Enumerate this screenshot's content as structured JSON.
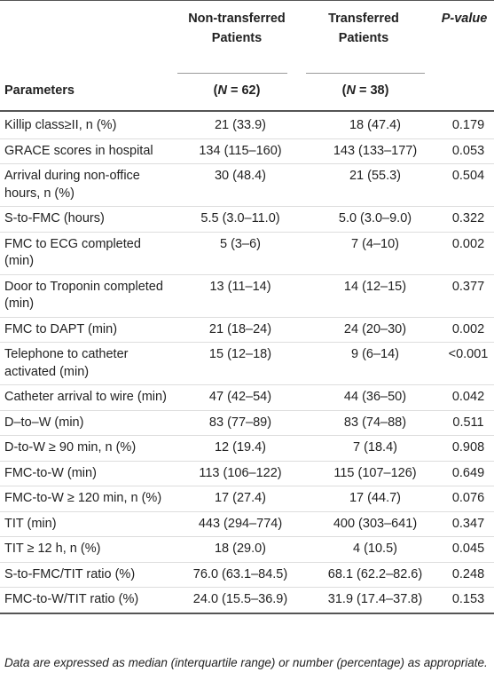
{
  "header": {
    "non_transferred": "Non-transferred Patients",
    "transferred": "Transferred Patients",
    "pvalue": "P-value",
    "parameters": "Parameters",
    "n_non_prefix": "(",
    "n_non_var": "N",
    "n_non_rest": " = 62)",
    "n_tr_prefix": "(",
    "n_tr_var": "N",
    "n_tr_rest": " = 38)"
  },
  "rows": [
    {
      "param": "Killip class≥II, n (%)",
      "non": "21 (33.9)",
      "tr": "18 (47.4)",
      "p": "0.179"
    },
    {
      "param": "GRACE scores in hospital",
      "non": "134 (115–160)",
      "tr": "143 (133–177)",
      "p": "0.053"
    },
    {
      "param": "Arrival during non-office hours, n (%)",
      "non": "30 (48.4)",
      "tr": "21 (55.3)",
      "p": "0.504"
    },
    {
      "param": "S-to-FMC (hours)",
      "non": "5.5 (3.0–11.0)",
      "tr": "5.0 (3.0–9.0)",
      "p": "0.322"
    },
    {
      "param": "FMC to ECG completed (min)",
      "non": "5 (3–6)",
      "tr": "7 (4–10)",
      "p": "0.002"
    },
    {
      "param": "Door to Troponin completed (min)",
      "non": "13 (11–14)",
      "tr": "14 (12–15)",
      "p": "0.377"
    },
    {
      "param": "FMC to DAPT (min)",
      "non": "21 (18–24)",
      "tr": "24 (20–30)",
      "p": "0.002"
    },
    {
      "param": "Telephone to catheter activated (min)",
      "non": "15 (12–18)",
      "tr": "9 (6–14)",
      "p": "<0.001"
    },
    {
      "param": "Catheter arrival to wire (min)",
      "non": "47 (42–54)",
      "tr": "44 (36–50)",
      "p": "0.042"
    },
    {
      "param": "D–to–W (min)",
      "non": "83 (77–89)",
      "tr": "83 (74–88)",
      "p": "0.511"
    },
    {
      "param": "D-to-W ≥ 90 min, n (%)",
      "non": "12 (19.4)",
      "tr": "7 (18.4)",
      "p": "0.908"
    },
    {
      "param": "FMC-to-W (min)",
      "non": "113 (106–122)",
      "tr": "115 (107–126)",
      "p": "0.649"
    },
    {
      "param": "FMC-to-W ≥ 120 min, n (%)",
      "non": "17 (27.4)",
      "tr": "17 (44.7)",
      "p": "0.076"
    },
    {
      "param": "TIT (min)",
      "non": "443 (294–774)",
      "tr": "400 (303–641)",
      "p": "0.347"
    },
    {
      "param": "TIT ≥ 12 h, n (%)",
      "non": "18 (29.0)",
      "tr": "4 (10.5)",
      "p": "0.045"
    },
    {
      "param": "S-to-FMC/TIT ratio (%)",
      "non": "76.0 (63.1–84.5)",
      "tr": "68.1 (62.2–82.6)",
      "p": "0.248"
    },
    {
      "param": "FMC-to-W/TIT ratio (%)",
      "non": "24.0 (15.5–36.9)",
      "tr": "31.9 (17.4–37.8)",
      "p": "0.153"
    }
  ],
  "footnote": "Data are expressed as median (interquartile range) or number (percentage) as appropriate."
}
